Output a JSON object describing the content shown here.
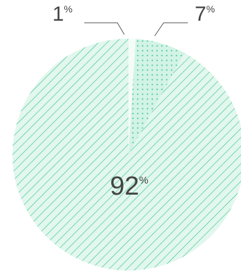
{
  "chart_data": {
    "type": "pie",
    "unit": "%",
    "slices": [
      {
        "value": 1,
        "label": "1"
      },
      {
        "value": 7,
        "label": "7"
      },
      {
        "value": 92,
        "label": "92"
      }
    ],
    "colors": {
      "fill": "#d8f5ea",
      "stroke": "#3cc48d",
      "dots": "#3cc48d",
      "text": "#444444",
      "leader": "#555555"
    }
  }
}
